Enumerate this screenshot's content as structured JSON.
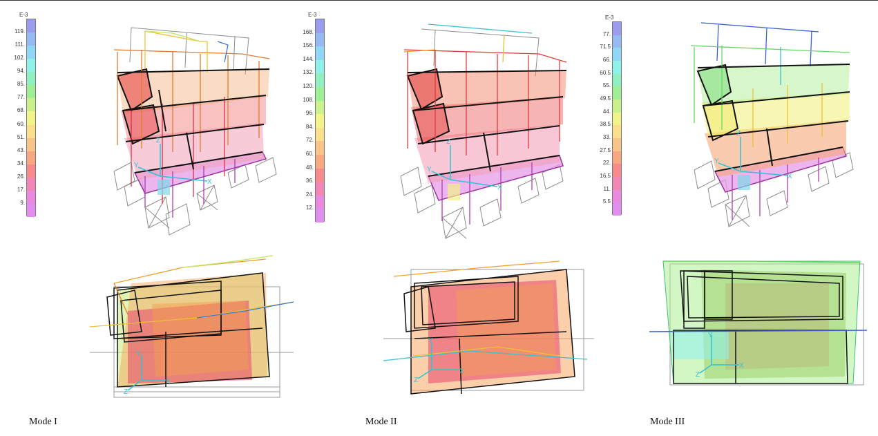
{
  "modes": [
    {
      "label": "Mode I",
      "scale_unit": "E-3",
      "scale_ticks": [
        "119.",
        "111.",
        "102.",
        "94.",
        "85.",
        "77.",
        "68.",
        "60.",
        "51.",
        "43.",
        "34.",
        "26.",
        "17.",
        "9."
      ]
    },
    {
      "label": "Mode II",
      "scale_unit": "E-3",
      "scale_ticks": [
        "168.",
        "156.",
        "144.",
        "132.",
        "120.",
        "108.",
        "96.",
        "84.",
        "72.",
        "60.",
        "48.",
        "36.",
        "24.",
        "12."
      ]
    },
    {
      "label": "Mode III",
      "scale_unit": "E-3",
      "scale_ticks": [
        "77.",
        "71.5",
        "66.",
        "60.5",
        "55.",
        "49.5",
        "44.",
        "38.5",
        "33.",
        "27.5",
        "22.",
        "16.5",
        "11.",
        "5.5"
      ]
    }
  ],
  "axis_labels": {
    "x": "X",
    "y": "Y",
    "z": "Z"
  },
  "scale_colors": [
    "#9b9bef",
    "#94b9f3",
    "#8fd7f5",
    "#8ef1ea",
    "#90f0c0",
    "#9fef94",
    "#c9f28c",
    "#f2f48a",
    "#fadf8c",
    "#f9c487",
    "#f7a880",
    "#f78a8a",
    "#f286b4",
    "#e98ade",
    "#e08ef0"
  ]
}
